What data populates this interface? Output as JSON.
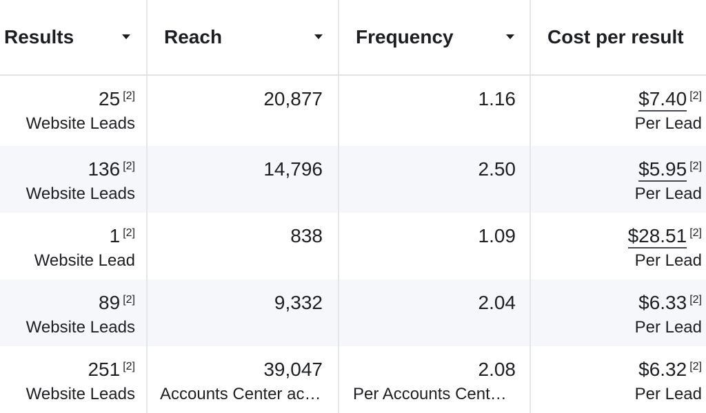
{
  "columns": [
    {
      "label": "Results",
      "caret": "chevron-down"
    },
    {
      "label": "Reach",
      "caret": "chevron-down"
    },
    {
      "label": "Frequency",
      "caret": "chevron-down"
    },
    {
      "label": "Cost per result"
    }
  ],
  "rows": [
    {
      "results": "25",
      "results_sup": "[2]",
      "results_sub": "Website Leads",
      "reach": "20,877",
      "reach_sub": "",
      "frequency": "1.16",
      "frequency_sub": "",
      "cost": "$7.40",
      "cost_sup": "[2]",
      "cost_sub": "Per Lead"
    },
    {
      "results": "136",
      "results_sup": "[2]",
      "results_sub": "Website Leads",
      "reach": "14,796",
      "reach_sub": "",
      "frequency": "2.50",
      "frequency_sub": "",
      "cost": "$5.95",
      "cost_sup": "[2]",
      "cost_sub": "Per Lead"
    },
    {
      "results": "1",
      "results_sup": "[2]",
      "results_sub": "Website Lead",
      "reach": "838",
      "reach_sub": "",
      "frequency": "1.09",
      "frequency_sub": "",
      "cost": "$28.51",
      "cost_sup": "[2]",
      "cost_sub": "Per Lead"
    },
    {
      "results": "89",
      "results_sup": "[2]",
      "results_sub": "Website Leads",
      "reach": "9,332",
      "reach_sub": "",
      "frequency": "2.04",
      "frequency_sub": "",
      "cost": "$6.33",
      "cost_sup": "[2]",
      "cost_sub": "Per Lead"
    },
    {
      "results": "251",
      "results_sup": "[2]",
      "results_sub": "Website Leads",
      "reach": "39,047",
      "reach_sub": "Accounts Center acc...",
      "frequency": "2.08",
      "frequency_sub": "Per Accounts Center...",
      "cost": "$6.32",
      "cost_sup": "[2]",
      "cost_sub": "Per Lead"
    }
  ],
  "colors": {
    "header_border": "#dfe1e5",
    "alt_row": "#f5f7fa",
    "text": "#1c1e21"
  }
}
